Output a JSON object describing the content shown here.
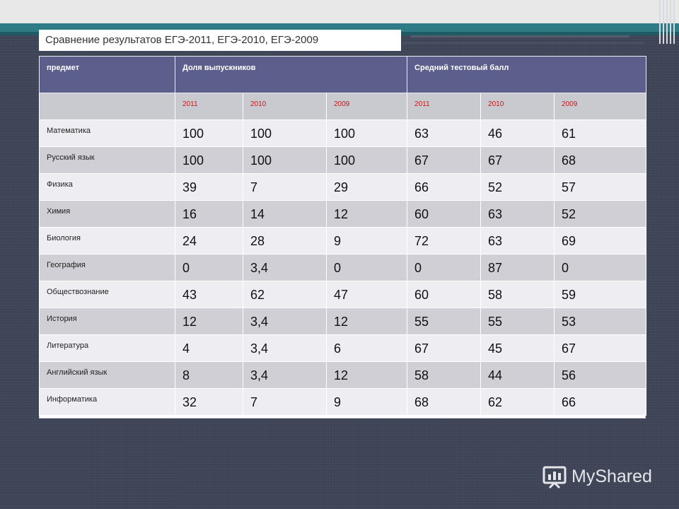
{
  "title": "Сравнение результатов ЕГЭ-2011, ЕГЭ-2010, ЕГЭ-2009",
  "header": {
    "subject": "предмет",
    "share": "Доля выпускников",
    "score": "Средний тестовый балл"
  },
  "years": [
    "2011",
    "2010",
    "2009",
    "2011",
    "2010",
    "2009"
  ],
  "rows": [
    {
      "subject": "Математика",
      "values": [
        "100",
        "100",
        "100",
        "63",
        "46",
        "61"
      ]
    },
    {
      "subject": "Русский язык",
      "values": [
        "100",
        "100",
        "100",
        "67",
        "67",
        "68"
      ]
    },
    {
      "subject": "Физика",
      "values": [
        "39",
        "7",
        "29",
        "66",
        "52",
        "57"
      ]
    },
    {
      "subject": "Химия",
      "values": [
        "16",
        "14",
        "12",
        "60",
        "63",
        "52"
      ]
    },
    {
      "subject": "Биология",
      "values": [
        "24",
        "28",
        "9",
        "72",
        "63",
        "69"
      ]
    },
    {
      "subject": "География",
      "values": [
        "0",
        "3,4",
        "0",
        "0",
        "87",
        "0"
      ]
    },
    {
      "subject": "Обществознание",
      "values": [
        "43",
        "62",
        "47",
        "60",
        "58",
        "59"
      ]
    },
    {
      "subject": "История",
      "values": [
        "12",
        "3,4",
        "12",
        "55",
        "55",
        "53"
      ]
    },
    {
      "subject": "Литература",
      "values": [
        "4",
        "3,4",
        "6",
        "67",
        "45",
        "67"
      ]
    },
    {
      "subject": "Английский язык",
      "values": [
        "8",
        "3,4",
        "12",
        "58",
        "44",
        "56"
      ]
    },
    {
      "subject": "Информатика",
      "values": [
        "32",
        "7",
        "9",
        "68",
        "62",
        "66"
      ]
    }
  ],
  "watermark": "MyShared",
  "colors": {
    "header_bg": "#5c5f8c",
    "year_text": "#cc1818",
    "background": "#3f4658",
    "accent_band": "#2f7c86"
  }
}
